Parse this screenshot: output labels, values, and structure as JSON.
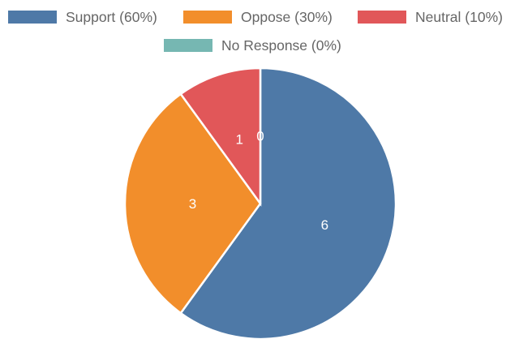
{
  "chart_data": {
    "type": "pie",
    "categories": [
      "Support (60%)",
      "Oppose (30%)",
      "Neutral (10%)",
      "No Response (0%)"
    ],
    "values": [
      6,
      3,
      1,
      0
    ],
    "value_labels": [
      "6",
      "3",
      "1",
      "0"
    ],
    "colors": [
      "#4e79a7",
      "#f28e2b",
      "#e15759",
      "#76b7b2"
    ],
    "legend_position": "top"
  }
}
